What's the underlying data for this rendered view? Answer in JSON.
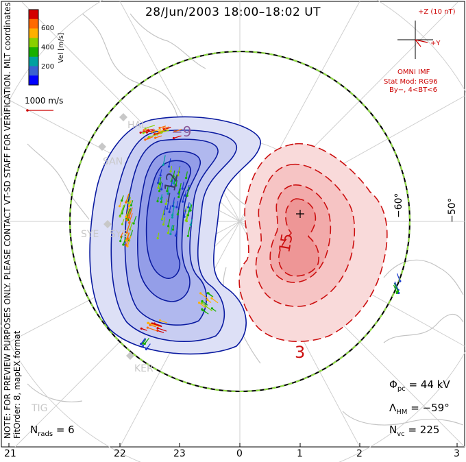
{
  "title": "28/Jun/2003  18:00–18:02  UT",
  "notes": {
    "preview": "NOTE: FOR PREVIEW PURPOSES ONLY. PLEASE CONTACT VT-SD STAFF FOR VERIFICATION.",
    "fit": "FitOrder: 8, mapEX format",
    "coords": "MLT coordinates"
  },
  "velocity_scale": {
    "label": "Vel [m/s]",
    "ticks": [
      "600",
      "400",
      "200"
    ],
    "colors": [
      "#d40000",
      "#ff6a00",
      "#ffb000",
      "#8ad000",
      "#18b000",
      "#00a0a0",
      "#3a60d0",
      "#0000ff"
    ],
    "reference_label": "1000 m/s"
  },
  "imf": {
    "z_label": "+Z (10 nT)",
    "y_label": "+Y",
    "source": "OMNI IMF",
    "model": "Stat Mod: RG96",
    "condition": "By−, 4<BT<6"
  },
  "latitude_labels": [
    "−60°",
    "−50°"
  ],
  "contour_labels": [
    "−9",
    "−12",
    "15",
    "3"
  ],
  "sites": [
    "SAN",
    "SYE",
    "SYS",
    "KER",
    "TIG",
    "HAL"
  ],
  "stats": {
    "phi_label": "Φ",
    "phi_sub": "pc",
    "phi_value": "= 44 kV",
    "lambda_label": "Λ",
    "lambda_sub": "HM",
    "lambda_value": "= −59°",
    "nrads_label": "N",
    "nrads_sub": "rads",
    "nrads_value": "= 6",
    "nvc_label": "N",
    "nvc_sub": "vc",
    "nvc_value": "= 225"
  },
  "mlt_ticks": [
    "21",
    "22",
    "23",
    "0",
    "1",
    "2",
    "3"
  ],
  "colors": {
    "negative_contour": "#0a1aa0",
    "positive_contour": "#cc1010",
    "negative_fill": "#6e7be8",
    "positive_fill": "#f08a8a",
    "hm_boundary_a": "#000000",
    "hm_boundary_b": "#90e040"
  }
}
